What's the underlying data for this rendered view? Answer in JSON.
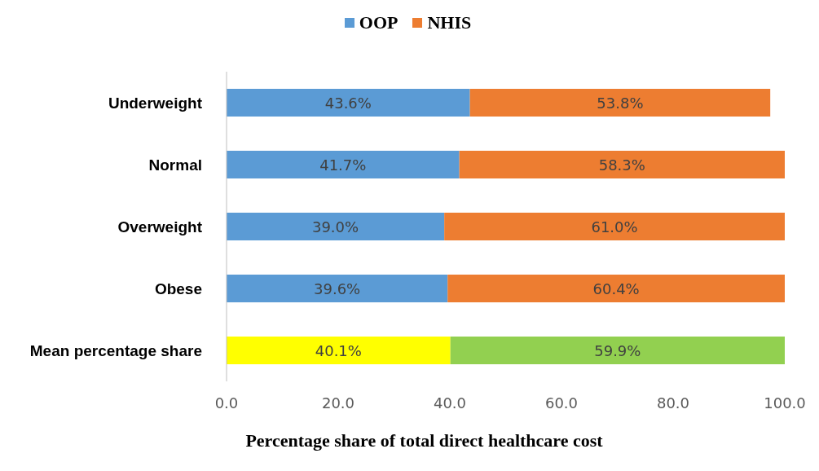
{
  "chart_data": {
    "type": "bar",
    "orientation": "horizontal",
    "stacked": true,
    "xlabel": "Percentage share of total direct healthcare cost",
    "categories": [
      "Underweight",
      "Normal",
      "Overweight",
      "Obese",
      "Mean percentage share"
    ],
    "series": [
      {
        "name": "OOP",
        "color": "#5b9bd5",
        "colors": [
          "#5b9bd5",
          "#5b9bd5",
          "#5b9bd5",
          "#5b9bd5",
          "#ffff00"
        ],
        "values": [
          43.6,
          41.7,
          39.0,
          39.6,
          40.1
        ],
        "value_labels": [
          "43.6%",
          "41.7%",
          "39.0%",
          "39.6%",
          "40.1%"
        ]
      },
      {
        "name": "NHIS",
        "color": "#ed7d31",
        "colors": [
          "#ed7d31",
          "#ed7d31",
          "#ed7d31",
          "#ed7d31",
          "#92d050"
        ],
        "values": [
          53.8,
          58.3,
          61.0,
          60.4,
          59.9
        ],
        "value_labels": [
          "53.8%",
          "58.3%",
          "61.0%",
          "60.4%",
          "59.9%"
        ]
      }
    ],
    "xlim": [
      0,
      100
    ],
    "xticks": [
      {
        "value": 0,
        "label": "0.0"
      },
      {
        "value": 20,
        "label": "20.0"
      },
      {
        "value": 40,
        "label": "40.0"
      },
      {
        "value": 60,
        "label": "60.0"
      },
      {
        "value": 80,
        "label": "80.0"
      },
      {
        "value": 100,
        "label": "100.0"
      }
    ],
    "legend": "top",
    "grid": false
  }
}
